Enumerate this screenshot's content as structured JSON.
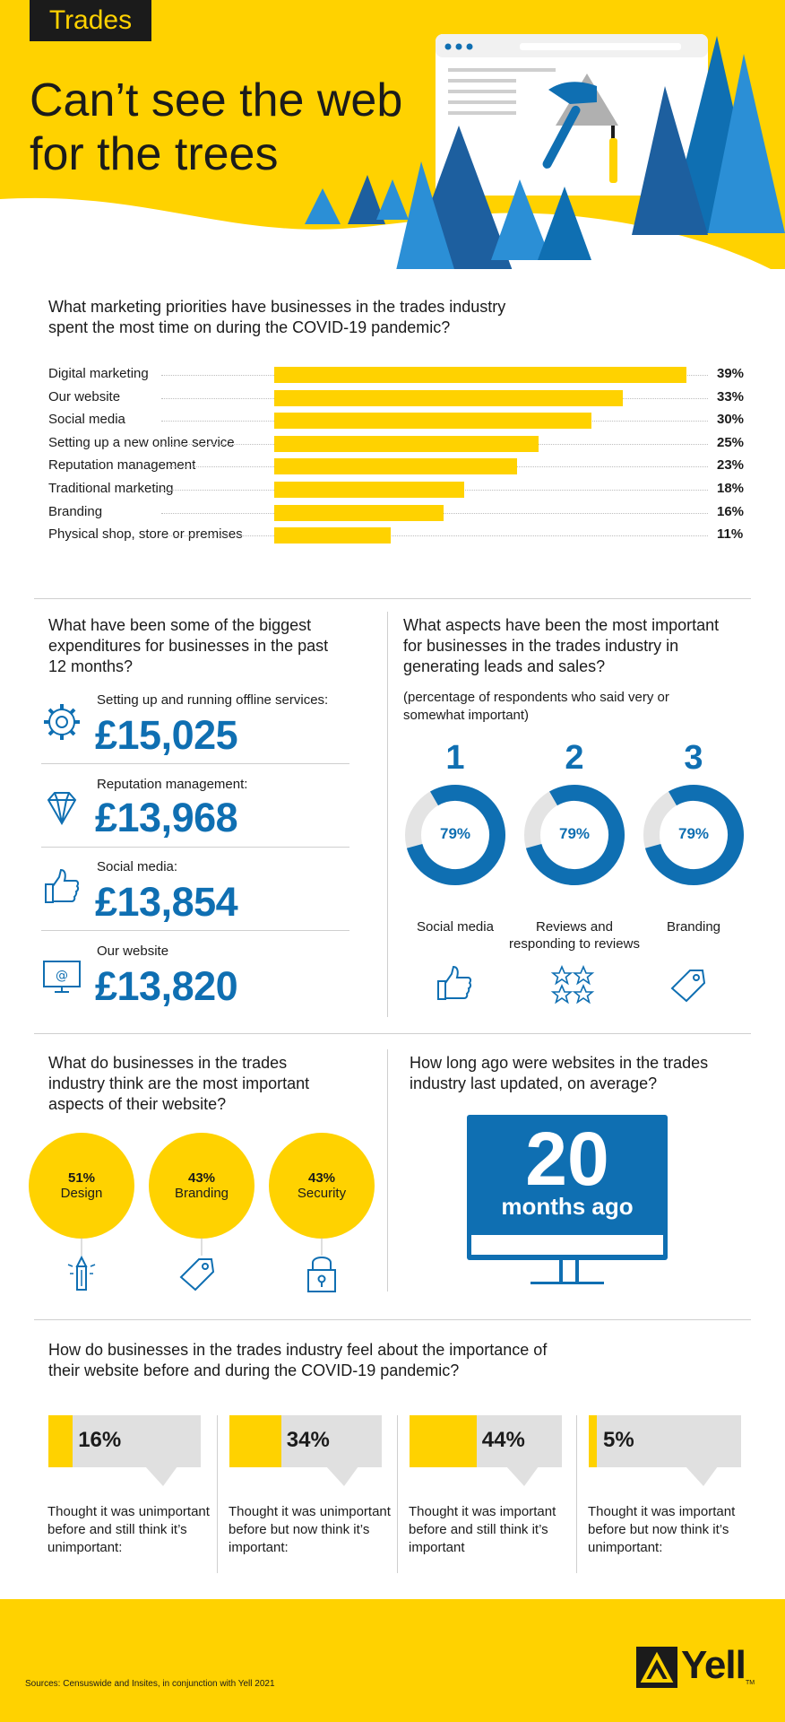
{
  "header": {
    "tag": "Trades",
    "title_line1": "Can’t see the web",
    "title_line2": "for the trees"
  },
  "priorities": {
    "question_line1": "What marketing priorities have businesses in the trades industry",
    "question_line2": "spent the most time on during the COVID-19 pandemic?",
    "chart_data": {
      "type": "bar",
      "categories": [
        "Digital marketing",
        "Our website",
        "Social media",
        "Setting up a new online service",
        "Reputation management",
        "Traditional marketing",
        "Branding",
        "Physical shop, store or premises"
      ],
      "values": [
        39,
        33,
        30,
        25,
        23,
        18,
        16,
        11
      ],
      "value_labels": [
        "39%",
        "33%",
        "30%",
        "25%",
        "23%",
        "18%",
        "16%",
        "11%"
      ]
    }
  },
  "expenditures": {
    "question_line1": "What have been some of the biggest",
    "question_line2": "expenditures for businesses in the past",
    "question_line3": "12 months?",
    "items": [
      {
        "label": "Setting up and running offline services:",
        "value": "£15,025",
        "icon": "gear-icon"
      },
      {
        "label": "Reputation management:",
        "value": "£13,968",
        "icon": "diamond-icon"
      },
      {
        "label": "Social media:",
        "value": "£13,854",
        "icon": "thumbs-up-icon"
      },
      {
        "label": "Our website",
        "value": "£13,820",
        "icon": "monitor-at-icon"
      }
    ]
  },
  "leads": {
    "question_line1": "What aspects have been the most important",
    "question_line2": "for businesses in the trades industry in",
    "question_line3": "generating leads and sales?",
    "note_line1": "(percentage of respondents who said very or",
    "note_line2": "somewhat important)",
    "items": [
      {
        "rank": "1",
        "pct_label": "79%",
        "value": 79,
        "label_line1": "Social media",
        "label_line2": "",
        "icon": "thumbs-up-icon"
      },
      {
        "rank": "2",
        "pct_label": "79%",
        "value": 79,
        "label_line1": "Reviews and",
        "label_line2": "responding to reviews",
        "icon": "stars-icon"
      },
      {
        "rank": "3",
        "pct_label": "79%",
        "value": 79,
        "label_line1": "Branding",
        "label_line2": "",
        "icon": "tag-icon"
      }
    ]
  },
  "website_aspects": {
    "question_line1": "What do businesses in the trades",
    "question_line2": "industry think are the most important",
    "question_line3": "aspects of their website?",
    "items": [
      {
        "pct": "51%",
        "name": "Design",
        "icon": "pencil-icon"
      },
      {
        "pct": "43%",
        "name": "Branding",
        "icon": "tag-icon"
      },
      {
        "pct": "43%",
        "name": "Security",
        "icon": "padlock-icon"
      }
    ]
  },
  "last_updated": {
    "question_line1": "How long ago were websites in the trades",
    "question_line2": "industry last updated, on average?",
    "number": "20",
    "unit": "months ago"
  },
  "importance": {
    "question_line1": "How do businesses in the trades industry feel about the importance of",
    "question_line2": "their website before and during the COVID-19 pandemic?",
    "items": [
      {
        "pct": "16%",
        "value": 16,
        "text": "Thought it was unimportant before and still think it’s unimportant:"
      },
      {
        "pct": "34%",
        "value": 34,
        "text": "Thought it was unimportant before but now think it’s important:"
      },
      {
        "pct": "44%",
        "value": 44,
        "text": "Thought it was important before and still think it’s important"
      },
      {
        "pct": "5%",
        "value": 5,
        "text": "Thought it was important before but now think it’s unimportant:"
      }
    ]
  },
  "footer": {
    "source": "Sources: Censuswide and Insites, in conjunction with Yell 2021",
    "brand": "Yell",
    "tm": "TM"
  },
  "colors": {
    "yellow": "#FFD200",
    "blue": "#0f6fb2",
    "light_blue": "#2b8fd6",
    "grey": "#e0e0e0",
    "dark": "#1b1b1b"
  }
}
